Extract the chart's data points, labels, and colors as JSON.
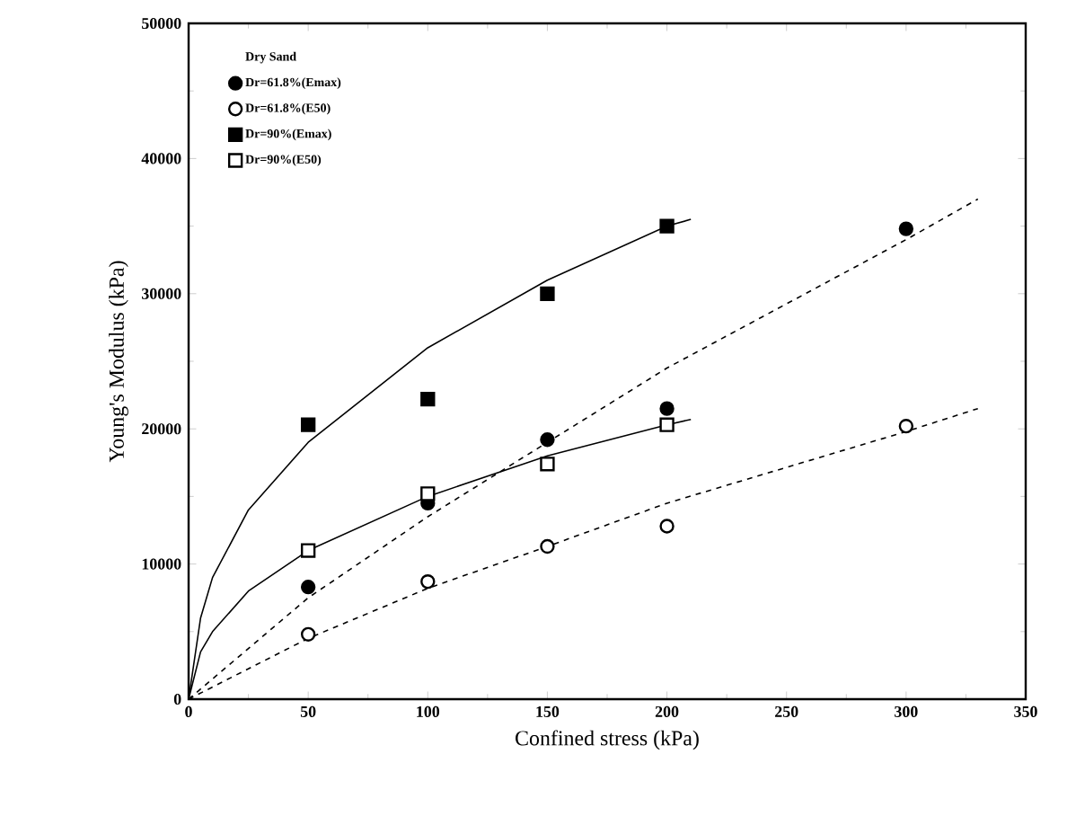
{
  "chart_data": {
    "type": "scatter",
    "xlabel": "Confined stress (kPa)",
    "ylabel": "Young's Modulus (kPa)",
    "legend_title": "Dry Sand",
    "legend": "top left",
    "grid": false,
    "xlim": [
      0,
      350
    ],
    "ylim": [
      0,
      50000
    ],
    "xticks": [
      0,
      50,
      100,
      150,
      200,
      250,
      300,
      350
    ],
    "yticks": [
      0,
      10000,
      20000,
      30000,
      40000,
      50000
    ],
    "series": [
      {
        "name": "Dr=61.8%(Emax)",
        "color": "#000000",
        "marker": "circle",
        "x": [
          50,
          100,
          150,
          200,
          300
        ],
        "values": [
          8300,
          14500,
          19200,
          21500,
          34800
        ]
      },
      {
        "name": "Dr=61.8%(E50)",
        "color": "#ffffff",
        "marker": "circle",
        "x": [
          50,
          100,
          150,
          200,
          300
        ],
        "values": [
          4800,
          8700,
          11300,
          12800,
          20200
        ]
      },
      {
        "name": "Dr=90%(Emax)",
        "color": "#000000",
        "marker": "square",
        "x": [
          50,
          100,
          150,
          200
        ],
        "values": [
          20300,
          22200,
          30000,
          35000
        ]
      },
      {
        "name": "Dr=90%(E50)",
        "color": "#ffffff",
        "marker": "square",
        "x": [
          50,
          100,
          150,
          200
        ],
        "values": [
          11000,
          15200,
          17400,
          20300
        ]
      },
      {
        "type": "line",
        "color": "#000000",
        "line_style": "solid",
        "marker": "none",
        "x": [
          0,
          5,
          10,
          25,
          50,
          100,
          150,
          200,
          210
        ],
        "values": [
          0,
          6000,
          9000,
          14000,
          19000,
          26000,
          31000,
          35000,
          35500
        ]
      },
      {
        "type": "line",
        "color": "#000000",
        "line_style": "solid",
        "marker": "none",
        "x": [
          0,
          5,
          10,
          25,
          50,
          100,
          150,
          200,
          210
        ],
        "values": [
          0,
          3500,
          5000,
          8000,
          11000,
          15000,
          18000,
          20300,
          20700
        ]
      },
      {
        "type": "line",
        "color": "#000000",
        "line_style": "dashed",
        "marker": "none",
        "x": [
          0,
          50,
          100,
          150,
          200,
          300,
          330
        ],
        "values": [
          0,
          7500,
          13500,
          19000,
          24500,
          34000,
          37000
        ]
      },
      {
        "type": "line",
        "color": "#000000",
        "line_style": "dashed",
        "marker": "none",
        "x": [
          0,
          50,
          100,
          150,
          200,
          300,
          330
        ],
        "values": [
          0,
          4500,
          8200,
          11300,
          14500,
          19800,
          21500
        ]
      }
    ]
  }
}
